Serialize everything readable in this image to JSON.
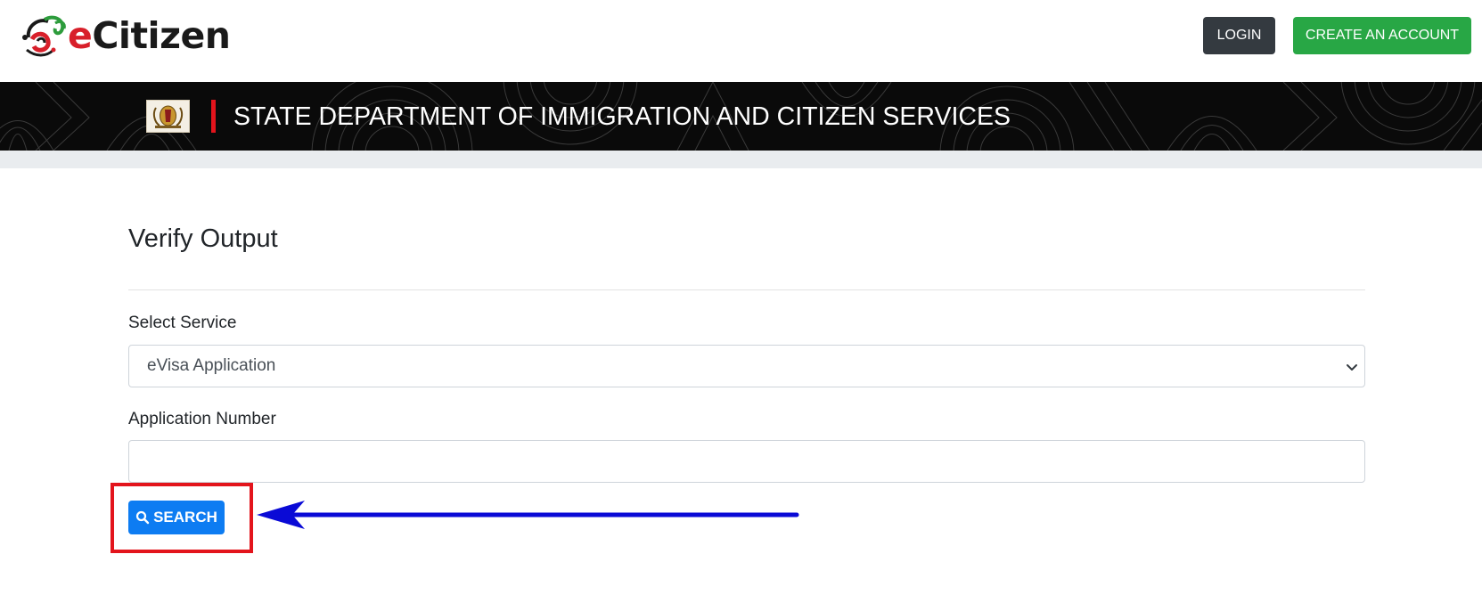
{
  "header": {
    "logo_text_accent": "e",
    "logo_text_rest": "Citizen",
    "login_label": "LOGIN",
    "create_account_label": "CREATE AN ACCOUNT"
  },
  "banner": {
    "department_title": "STATE DEPARTMENT OF IMMIGRATION AND CITIZEN SERVICES"
  },
  "main": {
    "page_title": "Verify Output",
    "select_service_label": "Select Service",
    "select_service_value": "eVisa Application",
    "application_number_label": "Application Number",
    "application_number_value": "",
    "search_label": "SEARCH"
  },
  "colors": {
    "login_bg": "#343a40",
    "create_account_bg": "#28a745",
    "search_bg": "#0d7cf2",
    "highlight_box": "#e3141c",
    "annotation_arrow": "#0a0ad6",
    "banner_bg": "#0a0a0a",
    "banner_accent": "#e3141c"
  },
  "icons": {
    "logo": "ecitizen-logo-mark",
    "search": "search-icon",
    "select": "chevron-down-icon",
    "crest": "coat-of-arms-icon"
  }
}
